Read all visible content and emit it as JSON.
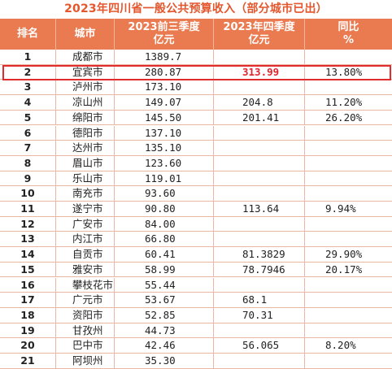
{
  "title": "2023年四川省一般公共预算收入（部分城市已出）",
  "header": {
    "rank": "排名",
    "city": "城市",
    "q3_line1": "2023前三季度",
    "q3_line2": "亿元",
    "q4_line1": "2023年四季度",
    "q4_line2": "亿元",
    "yoy_line1": "同比",
    "yoy_line2": "%"
  },
  "colors": {
    "header_bg": "#ea7a4f",
    "title": "#e4572e",
    "highlight": "#e02c2c"
  },
  "rows": [
    {
      "rank": "1",
      "city": "成都市",
      "q3": "1389.7",
      "q4": "",
      "yoy": ""
    },
    {
      "rank": "2",
      "city": "宜宾市",
      "q3": "280.87",
      "q4": "313.99",
      "yoy": "13.80%"
    },
    {
      "rank": "3",
      "city": "泸州市",
      "q3": "173.10",
      "q4": "",
      "yoy": ""
    },
    {
      "rank": "4",
      "city": "凉山州",
      "q3": "149.07",
      "q4": "204.8",
      "yoy": "11.20%"
    },
    {
      "rank": "5",
      "city": "绵阳市",
      "q3": "145.50",
      "q4": "201.41",
      "yoy": "26.20%"
    },
    {
      "rank": "6",
      "city": "德阳市",
      "q3": "137.10",
      "q4": "",
      "yoy": ""
    },
    {
      "rank": "7",
      "city": "达州市",
      "q3": "135.10",
      "q4": "",
      "yoy": ""
    },
    {
      "rank": "8",
      "city": "眉山市",
      "q3": "123.60",
      "q4": "",
      "yoy": ""
    },
    {
      "rank": "9",
      "city": "乐山市",
      "q3": "119.01",
      "q4": "",
      "yoy": ""
    },
    {
      "rank": "10",
      "city": "南充市",
      "q3": "93.60",
      "q4": "",
      "yoy": ""
    },
    {
      "rank": "11",
      "city": "遂宁市",
      "q3": "90.80",
      "q4": "113.64",
      "yoy": "9.94%"
    },
    {
      "rank": "12",
      "city": "广安市",
      "q3": "84.00",
      "q4": "",
      "yoy": ""
    },
    {
      "rank": "13",
      "city": "内江市",
      "q3": "66.80",
      "q4": "",
      "yoy": ""
    },
    {
      "rank": "14",
      "city": "自贡市",
      "q3": "60.41",
      "q4": "81.3829",
      "yoy": "29.90%"
    },
    {
      "rank": "15",
      "city": "雅安市",
      "q3": "58.99",
      "q4": "78.7946",
      "yoy": "20.17%"
    },
    {
      "rank": "16",
      "city": "攀枝花市",
      "q3": "55.44",
      "q4": "",
      "yoy": ""
    },
    {
      "rank": "17",
      "city": "广元市",
      "q3": "53.67",
      "q4": "68.1",
      "yoy": ""
    },
    {
      "rank": "18",
      "city": "资阳市",
      "q3": "52.85",
      "q4": "70.31",
      "yoy": ""
    },
    {
      "rank": "19",
      "city": "甘孜州",
      "q3": "44.73",
      "q4": "",
      "yoy": ""
    },
    {
      "rank": "20",
      "city": "巴中市",
      "q3": "42.46",
      "q4": "56.065",
      "yoy": "8.20%"
    },
    {
      "rank": "21",
      "city": "阿坝州",
      "q3": "35.30",
      "q4": "",
      "yoy": ""
    }
  ]
}
